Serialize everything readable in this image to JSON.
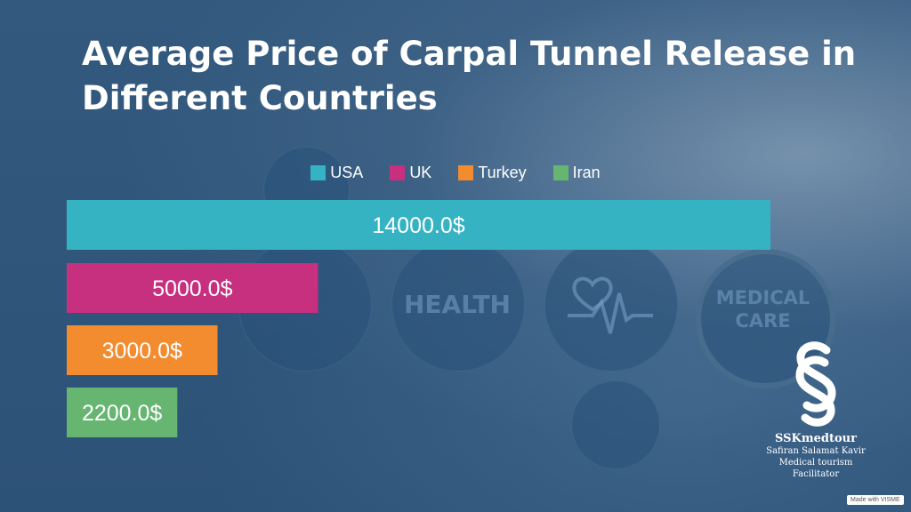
{
  "chart_data": {
    "type": "bar",
    "orientation": "horizontal",
    "title": "Average Price of Carpal Tunnel Release in Different Countries",
    "categories": [
      "USA",
      "UK",
      "Turkey",
      "Iran"
    ],
    "values": [
      14000.0,
      5000.0,
      3000.0,
      2200.0
    ],
    "labels": [
      "14000.0$",
      "5000.0$",
      "3000.0$",
      "2200.0$"
    ],
    "colors": [
      "#35b3c3",
      "#c6307f",
      "#f38b2f",
      "#66b571"
    ],
    "xlim": [
      0,
      14000
    ],
    "legend_position": "top-center",
    "grid": false
  },
  "background": {
    "health_text": "HEALTH",
    "medical_care_text": "MEDICAL CARE"
  },
  "logo": {
    "name": "SSKmedtour",
    "line1": "Safiran Salamat Kavir",
    "line2": "Medical tourism Facilitator"
  },
  "watermark": "Made with VISME"
}
